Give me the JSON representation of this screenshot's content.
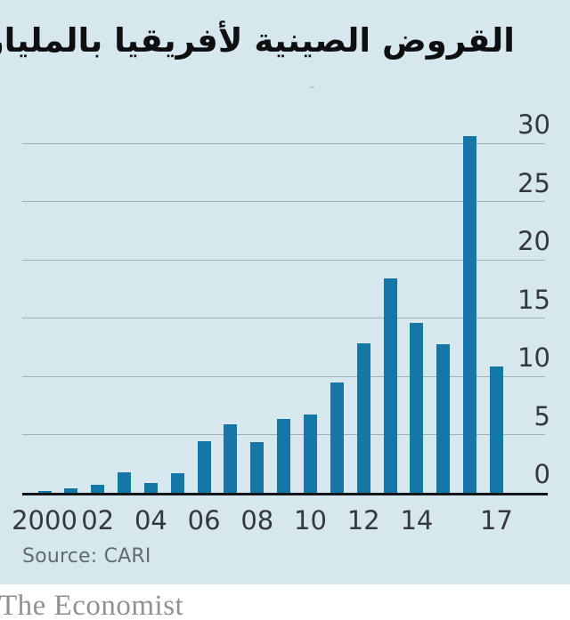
{
  "header": {
    "title": "القروض الصينية لأفريقيا بالمليار"
  },
  "chart_data": {
    "type": "bar",
    "title": "القروض الصينية لأفريقيا بالمليار",
    "title_translation": "Chinese loans to Africa, $bn",
    "categories": [
      "2000",
      "2001",
      "2002",
      "2003",
      "2004",
      "2005",
      "2006",
      "2007",
      "2008",
      "2009",
      "2010",
      "2011",
      "2012",
      "2013",
      "2014",
      "2015",
      "2016",
      "2017"
    ],
    "values": [
      0.15,
      0.35,
      0.7,
      1.75,
      0.85,
      1.7,
      4.45,
      5.85,
      4.35,
      6.35,
      6.7,
      9.5,
      12.8,
      18.4,
      14.6,
      12.75,
      30.6,
      10.85
    ],
    "x_tick_labels": [
      "2000",
      "",
      "02",
      "",
      "04",
      "",
      "06",
      "",
      "08",
      "",
      "10",
      "",
      "12",
      "",
      "14",
      "",
      "",
      "17"
    ],
    "yticks": [
      0,
      5,
      10,
      15,
      20,
      25,
      30
    ],
    "ylim": [
      0,
      31
    ],
    "xlabel": "",
    "ylabel": "",
    "grid": "horizontal",
    "y_axis_side": "right",
    "legend": "none",
    "bar_color": "#1577a5"
  },
  "source": {
    "label": "Source: CARI"
  },
  "footer": {
    "brand": "The Economist"
  },
  "colors": {
    "card_background": "#d7e7ee",
    "page_background": "#ffffff",
    "bar": "#1577a5",
    "gridline": "#a4b0b6",
    "axis": "#14171a",
    "tick_text": "#33393d",
    "source_text": "#5f6c73",
    "brand_text": "#8f9295",
    "title_text": "#0e0f10"
  }
}
